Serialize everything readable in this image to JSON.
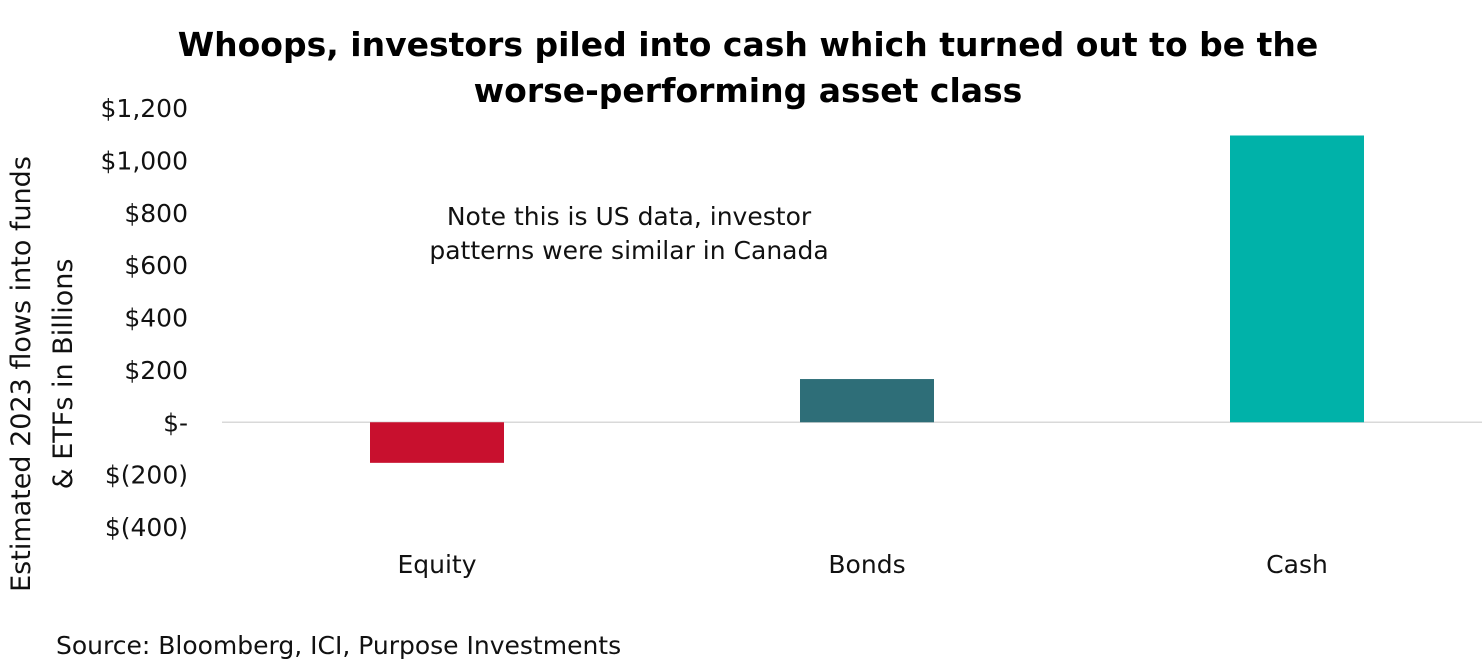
{
  "chart_data": {
    "type": "bar",
    "title_lines": [
      "Whoops, investors piled into cash which turned out to be the",
      "worse-performing asset class"
    ],
    "ylabel_lines": [
      "Estimated 2023 flows into funds",
      "& ETFs in Billions"
    ],
    "xlabel": "",
    "categories": [
      "Equity",
      "Bonds",
      "Cash"
    ],
    "values": [
      -155,
      165,
      1095
    ],
    "colors": [
      "#C8102E",
      "#2E6E78",
      "#00B2A9"
    ],
    "ylim": [
      -400,
      1200
    ],
    "yticks": [
      1200,
      1000,
      800,
      600,
      400,
      200,
      0,
      -200,
      -400
    ],
    "ytick_labels": [
      "$1,200",
      "$1,000",
      "$800",
      "$600",
      "$400",
      "$200",
      "$-",
      "$(200)",
      "$(400)"
    ],
    "grid": false,
    "annotation_lines": [
      "Note this is US data, investor",
      "patterns were similar in Canada"
    ],
    "source": "Source: Bloomberg, ICI, Purpose Investments"
  }
}
